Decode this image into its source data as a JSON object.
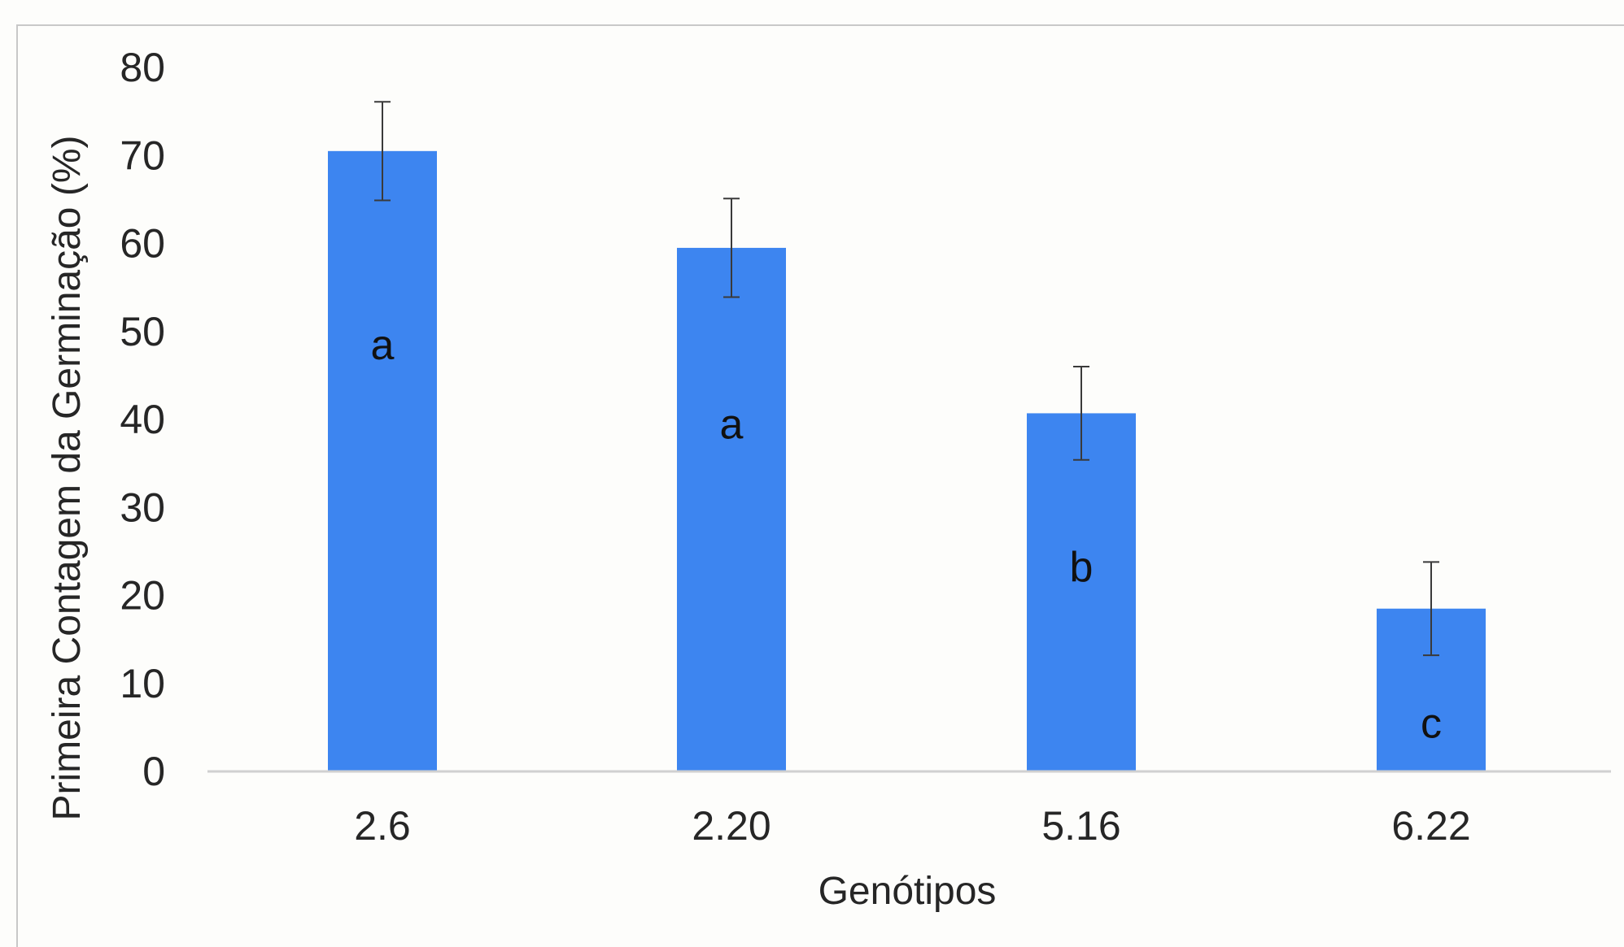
{
  "chart_data": {
    "type": "bar",
    "categories": [
      "2.6",
      "2.20",
      "5.16",
      "6.22"
    ],
    "values": [
      70.5,
      59.5,
      40.7,
      18.5
    ],
    "error": [
      5.6,
      5.6,
      5.3,
      5.3
    ],
    "letters": [
      "a",
      "a",
      "b",
      "c"
    ],
    "letter_y": [
      48.5,
      39.5,
      23.3,
      5.5
    ],
    "yticks": [
      0,
      10,
      20,
      30,
      40,
      50,
      60,
      70,
      80
    ],
    "ylim": [
      0,
      80
    ],
    "xlabel": "Genótipos",
    "ylabel": "Primeira Contagem da Germinação (%)",
    "bar_color": "#3d85f0",
    "grid": false,
    "legend": "none"
  }
}
